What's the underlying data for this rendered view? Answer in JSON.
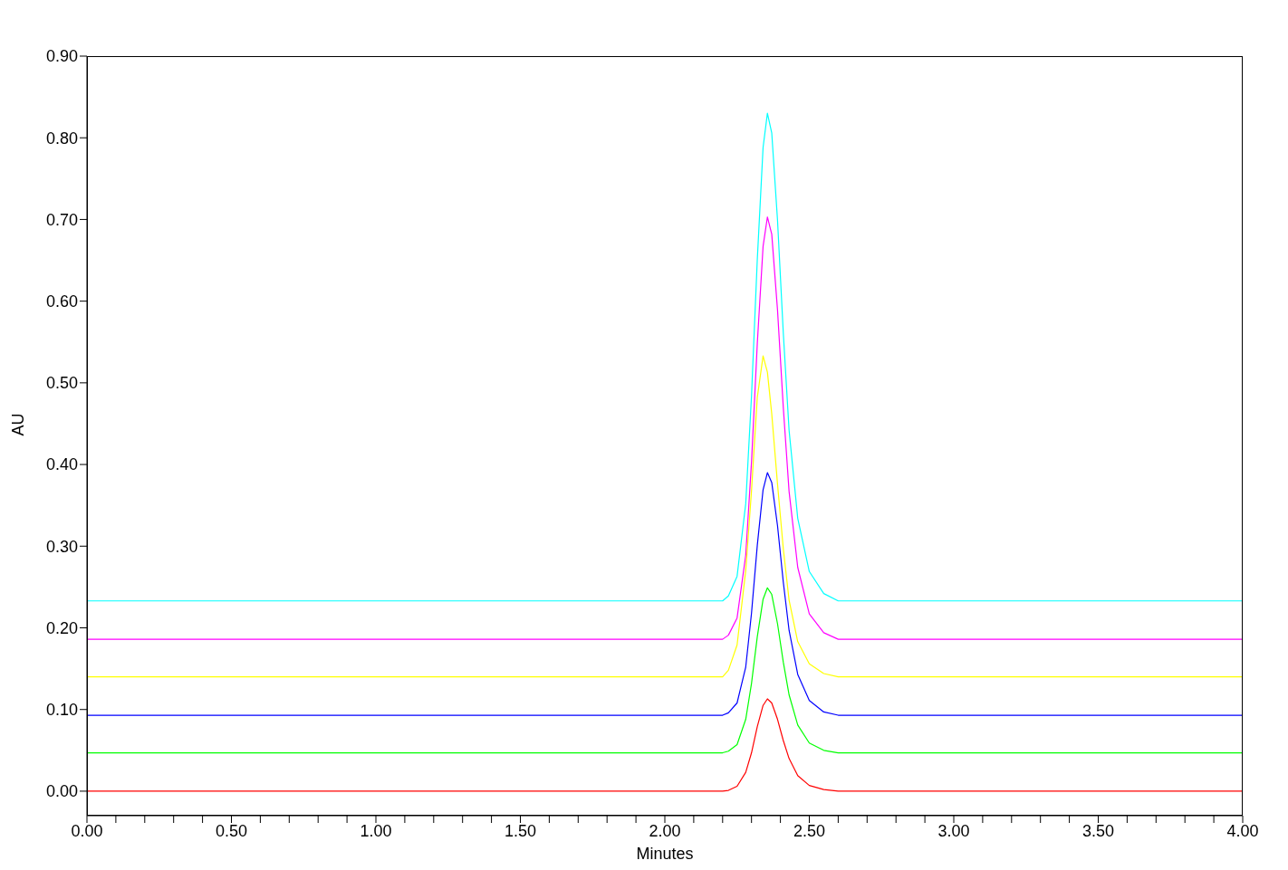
{
  "chart_data": {
    "type": "line",
    "xlabel": "Minutes",
    "ylabel": "AU",
    "x": [
      0,
      2.2,
      2.22,
      2.25,
      2.28,
      2.3,
      2.32,
      2.34,
      2.355,
      2.37,
      2.39,
      2.41,
      2.43,
      2.46,
      2.5,
      2.55,
      2.6,
      4.0
    ],
    "series": [
      {
        "color": "#00ffff",
        "values": [
          0.233,
          0.233,
          0.239,
          0.263,
          0.352,
          0.484,
          0.651,
          0.788,
          0.83,
          0.806,
          0.699,
          0.561,
          0.442,
          0.334,
          0.269,
          0.242,
          0.233,
          0.233
        ]
      },
      {
        "color": "#ff00ff",
        "values": [
          0.186,
          0.186,
          0.191,
          0.212,
          0.289,
          0.403,
          0.548,
          0.667,
          0.703,
          0.682,
          0.589,
          0.47,
          0.367,
          0.274,
          0.217,
          0.194,
          0.186,
          0.186
        ]
      },
      {
        "color": "#ffff00",
        "values": [
          0.14,
          0.14,
          0.148,
          0.179,
          0.27,
          0.368,
          0.482,
          0.533,
          0.513,
          0.462,
          0.376,
          0.297,
          0.234,
          0.183,
          0.156,
          0.144,
          0.14,
          0.14
        ]
      },
      {
        "color": "#0000ff",
        "values": [
          0.093,
          0.093,
          0.096,
          0.108,
          0.152,
          0.218,
          0.301,
          0.369,
          0.39,
          0.378,
          0.325,
          0.256,
          0.197,
          0.143,
          0.111,
          0.097,
          0.093,
          0.093
        ]
      },
      {
        "color": "#00ff00",
        "values": [
          0.047,
          0.047,
          0.049,
          0.057,
          0.088,
          0.132,
          0.189,
          0.235,
          0.249,
          0.241,
          0.205,
          0.158,
          0.118,
          0.081,
          0.059,
          0.05,
          0.047,
          0.047
        ]
      },
      {
        "color": "#ff0000",
        "values": [
          0,
          0,
          0.001,
          0.006,
          0.023,
          0.047,
          0.079,
          0.105,
          0.113,
          0.108,
          0.088,
          0.062,
          0.04,
          0.019,
          0.007,
          0.002,
          0,
          0
        ]
      }
    ],
    "xlim": [
      0,
      4
    ],
    "xticks": [
      {
        "value": 0,
        "label": "0.00"
      },
      {
        "value": 0.1,
        "label": null
      },
      {
        "value": 0.2,
        "label": null
      },
      {
        "value": 0.3,
        "label": null
      },
      {
        "value": 0.4,
        "label": null
      },
      {
        "value": 0.5,
        "label": "0.50"
      },
      {
        "value": 0.6,
        "label": null
      },
      {
        "value": 0.7,
        "label": null
      },
      {
        "value": 0.8,
        "label": null
      },
      {
        "value": 0.9,
        "label": null
      },
      {
        "value": 1,
        "label": "1.00"
      },
      {
        "value": 1.1,
        "label": null
      },
      {
        "value": 1.2,
        "label": null
      },
      {
        "value": 1.3,
        "label": null
      },
      {
        "value": 1.4,
        "label": null
      },
      {
        "value": 1.5,
        "label": "1.50"
      },
      {
        "value": 1.6,
        "label": null
      },
      {
        "value": 1.7,
        "label": null
      },
      {
        "value": 1.8,
        "label": null
      },
      {
        "value": 1.9,
        "label": null
      },
      {
        "value": 2,
        "label": "2.00"
      },
      {
        "value": 2.1,
        "label": null
      },
      {
        "value": 2.2,
        "label": null
      },
      {
        "value": 2.3,
        "label": null
      },
      {
        "value": 2.4,
        "label": null
      },
      {
        "value": 2.5,
        "label": "2.50"
      },
      {
        "value": 2.6,
        "label": null
      },
      {
        "value": 2.7,
        "label": null
      },
      {
        "value": 2.8,
        "label": null
      },
      {
        "value": 2.9,
        "label": null
      },
      {
        "value": 3,
        "label": "3.00"
      },
      {
        "value": 3.1,
        "label": null
      },
      {
        "value": 3.2,
        "label": null
      },
      {
        "value": 3.3,
        "label": null
      },
      {
        "value": 3.4,
        "label": null
      },
      {
        "value": 3.5,
        "label": "3.50"
      },
      {
        "value": 3.6,
        "label": null
      },
      {
        "value": 3.7,
        "label": null
      },
      {
        "value": 3.8,
        "label": null
      },
      {
        "value": 3.9,
        "label": null
      },
      {
        "value": 4,
        "label": "4.00"
      }
    ],
    "ylim": [
      -0.03,
      0.9
    ],
    "yticks": [
      {
        "value": 0,
        "label": "0.00"
      },
      {
        "value": 0.1,
        "label": "0.10"
      },
      {
        "value": 0.2,
        "label": "0.20"
      },
      {
        "value": 0.3,
        "label": "0.30"
      },
      {
        "value": 0.4,
        "label": "0.40"
      },
      {
        "value": 0.5,
        "label": "0.50"
      },
      {
        "value": 0.6,
        "label": "0.60"
      },
      {
        "value": 0.7,
        "label": "0.70"
      },
      {
        "value": 0.8,
        "label": "0.80"
      },
      {
        "value": 0.9,
        "label": "0.90"
      }
    ],
    "grid": false,
    "marker": "none",
    "line_style": "solid"
  }
}
